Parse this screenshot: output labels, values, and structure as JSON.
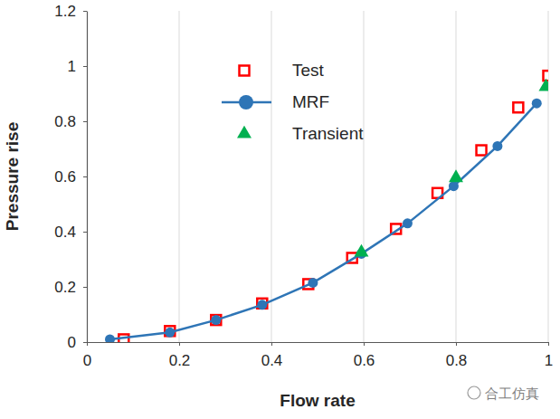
{
  "chart_data": {
    "type": "line",
    "x_label": "Flow rate",
    "y_label": "Pressure rise",
    "xlim": [
      0,
      1
    ],
    "ylim": [
      0,
      1.2
    ],
    "xticks": [
      0,
      0.2,
      0.4,
      0.6,
      0.8,
      1
    ],
    "yticks": [
      0,
      0.2,
      0.4,
      0.6,
      0.8,
      1,
      1.2
    ],
    "grid": "x",
    "legend": "upper left",
    "annotations": [
      "合工仿真"
    ],
    "series": [
      {
        "name": "Test",
        "type": "scatter",
        "marker": "square-open",
        "color": "#ff0000",
        "x": [
          0.08,
          0.18,
          0.28,
          0.38,
          0.48,
          0.575,
          0.67,
          0.76,
          0.855,
          0.935,
          1.0
        ],
        "values": [
          0.01,
          0.04,
          0.08,
          0.14,
          0.21,
          0.305,
          0.41,
          0.54,
          0.695,
          0.85,
          0.965
        ]
      },
      {
        "name": "MRF",
        "type": "line",
        "marker": "circle",
        "line_style": "solid",
        "color": "#2e75b6",
        "x": [
          0.05,
          0.18,
          0.28,
          0.38,
          0.49,
          0.595,
          0.695,
          0.795,
          0.89,
          0.975
        ],
        "values": [
          0.01,
          0.035,
          0.08,
          0.135,
          0.215,
          0.32,
          0.43,
          0.565,
          0.71,
          0.865
        ]
      },
      {
        "name": "Transient",
        "type": "scatter",
        "marker": "triangle",
        "color": "#00b050",
        "x": [
          0.595,
          0.8,
          0.995
        ],
        "values": [
          0.325,
          0.595,
          0.925
        ]
      }
    ]
  }
}
